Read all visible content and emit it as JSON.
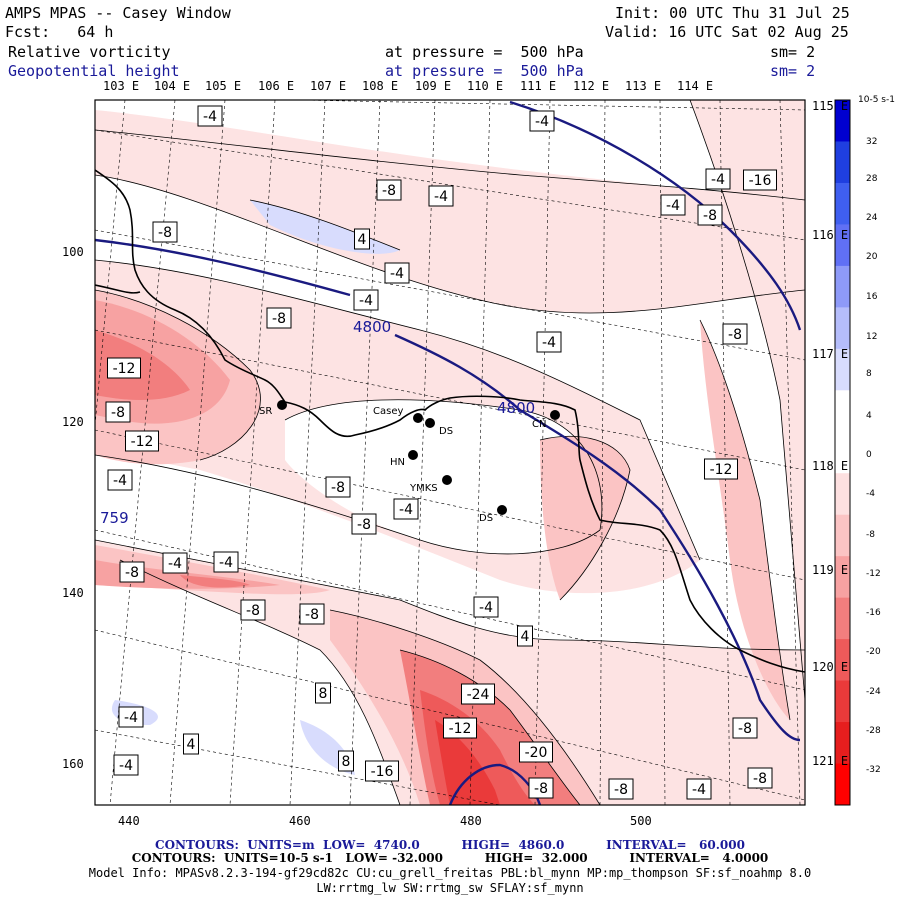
{
  "header": {
    "left_line1": "AMPS MPAS -- Casey Window",
    "left_line2": "Fcst:   64 h",
    "right_line1": "Init: 00 UTC Thu 31 Jul 25",
    "right_line2": "Valid: 16 UTC Sat 02 Aug 25",
    "field1_name": "Relative vorticity",
    "field1_pressure": "at pressure =  500 hPa",
    "field1_sm": "sm= 2",
    "field2_name": "Geopotential height",
    "field2_pressure": "at pressure =  500 hPa",
    "field2_sm": "sm= 2"
  },
  "top_longitudes": [
    "103 E",
    "104 E",
    "105 E",
    "106 E",
    "107 E",
    "108 E",
    "109 E",
    "110 E",
    "111 E",
    "112 E",
    "113 E",
    "114 E"
  ],
  "right_longitudes": [
    "115 E",
    "116 E",
    "117 E",
    "118 E",
    "119 E",
    "120 E",
    "121 E"
  ],
  "left_ticks": [
    "100",
    "120",
    "140",
    "160"
  ],
  "bottom_ticks": [
    "440",
    "460",
    "480",
    "500"
  ],
  "colorbar": {
    "unit": "10-5 s-1",
    "labels": [
      "32",
      "28",
      "24",
      "20",
      "16",
      "12",
      "8",
      "4",
      "0",
      "-4",
      "-8",
      "-12",
      "-16",
      "-20",
      "-24",
      "-28",
      "-32"
    ],
    "colors": [
      "#0000d0",
      "#1f3fe0",
      "#3f5ff0",
      "#6070f5",
      "#8e9af8",
      "#b5bdfb",
      "#d8dcfd",
      "#ffffff",
      "#ffffff",
      "#fde0e0",
      "#fbc4c4",
      "#f7a2a2",
      "#f27e7e",
      "#ee5a5a",
      "#ea3a3a",
      "#e61e1e",
      "#ff0000"
    ]
  },
  "stations": [
    {
      "label": "SR"
    },
    {
      "label": "Casey"
    },
    {
      "label": "DS"
    },
    {
      "label": "HN"
    },
    {
      "label": "YMKS"
    },
    {
      "label": "DS"
    },
    {
      "label": "CN"
    }
  ],
  "contour_labels": {
    "height": [
      "4800",
      "4800",
      "759"
    ],
    "vorticity": [
      "-4",
      "-4",
      "-8",
      "-4",
      "-8",
      "4",
      "-4",
      "-4",
      "-8",
      "-4",
      "-8",
      "-4",
      "-4",
      "-8",
      "-16",
      "-12",
      "-8",
      "-12",
      "-4",
      "-8",
      "-4",
      "-8",
      "-12",
      "-8",
      "-4",
      "-4",
      "-8",
      "-8",
      "-4",
      "4",
      "8",
      "-4",
      "4",
      "8",
      "-16",
      "-24",
      "-12",
      "-20",
      "-8",
      "-8",
      "-4",
      "-8",
      "-8",
      "-4"
    ]
  },
  "footer": {
    "line1": "CONTOURS:  UNITS=m  LOW=  4740.0          HIGH=  4860.0          INTERVAL=   60.000",
    "line2": "CONTOURS:  UNITS=10-5 s-1   LOW= -32.000          HIGH=  32.000          INTERVAL=   4.0000",
    "line3": "Model Info: MPASv8.2.3-194-gf29cd82c CU:cu_grell_freitas PBL:bl_mynn MP:mp_thompson SF:sf_noahmp 8.0",
    "line4": "LW:rrtmg_lw SW:rrtmg_sw SFLAY:sf_mynn"
  }
}
